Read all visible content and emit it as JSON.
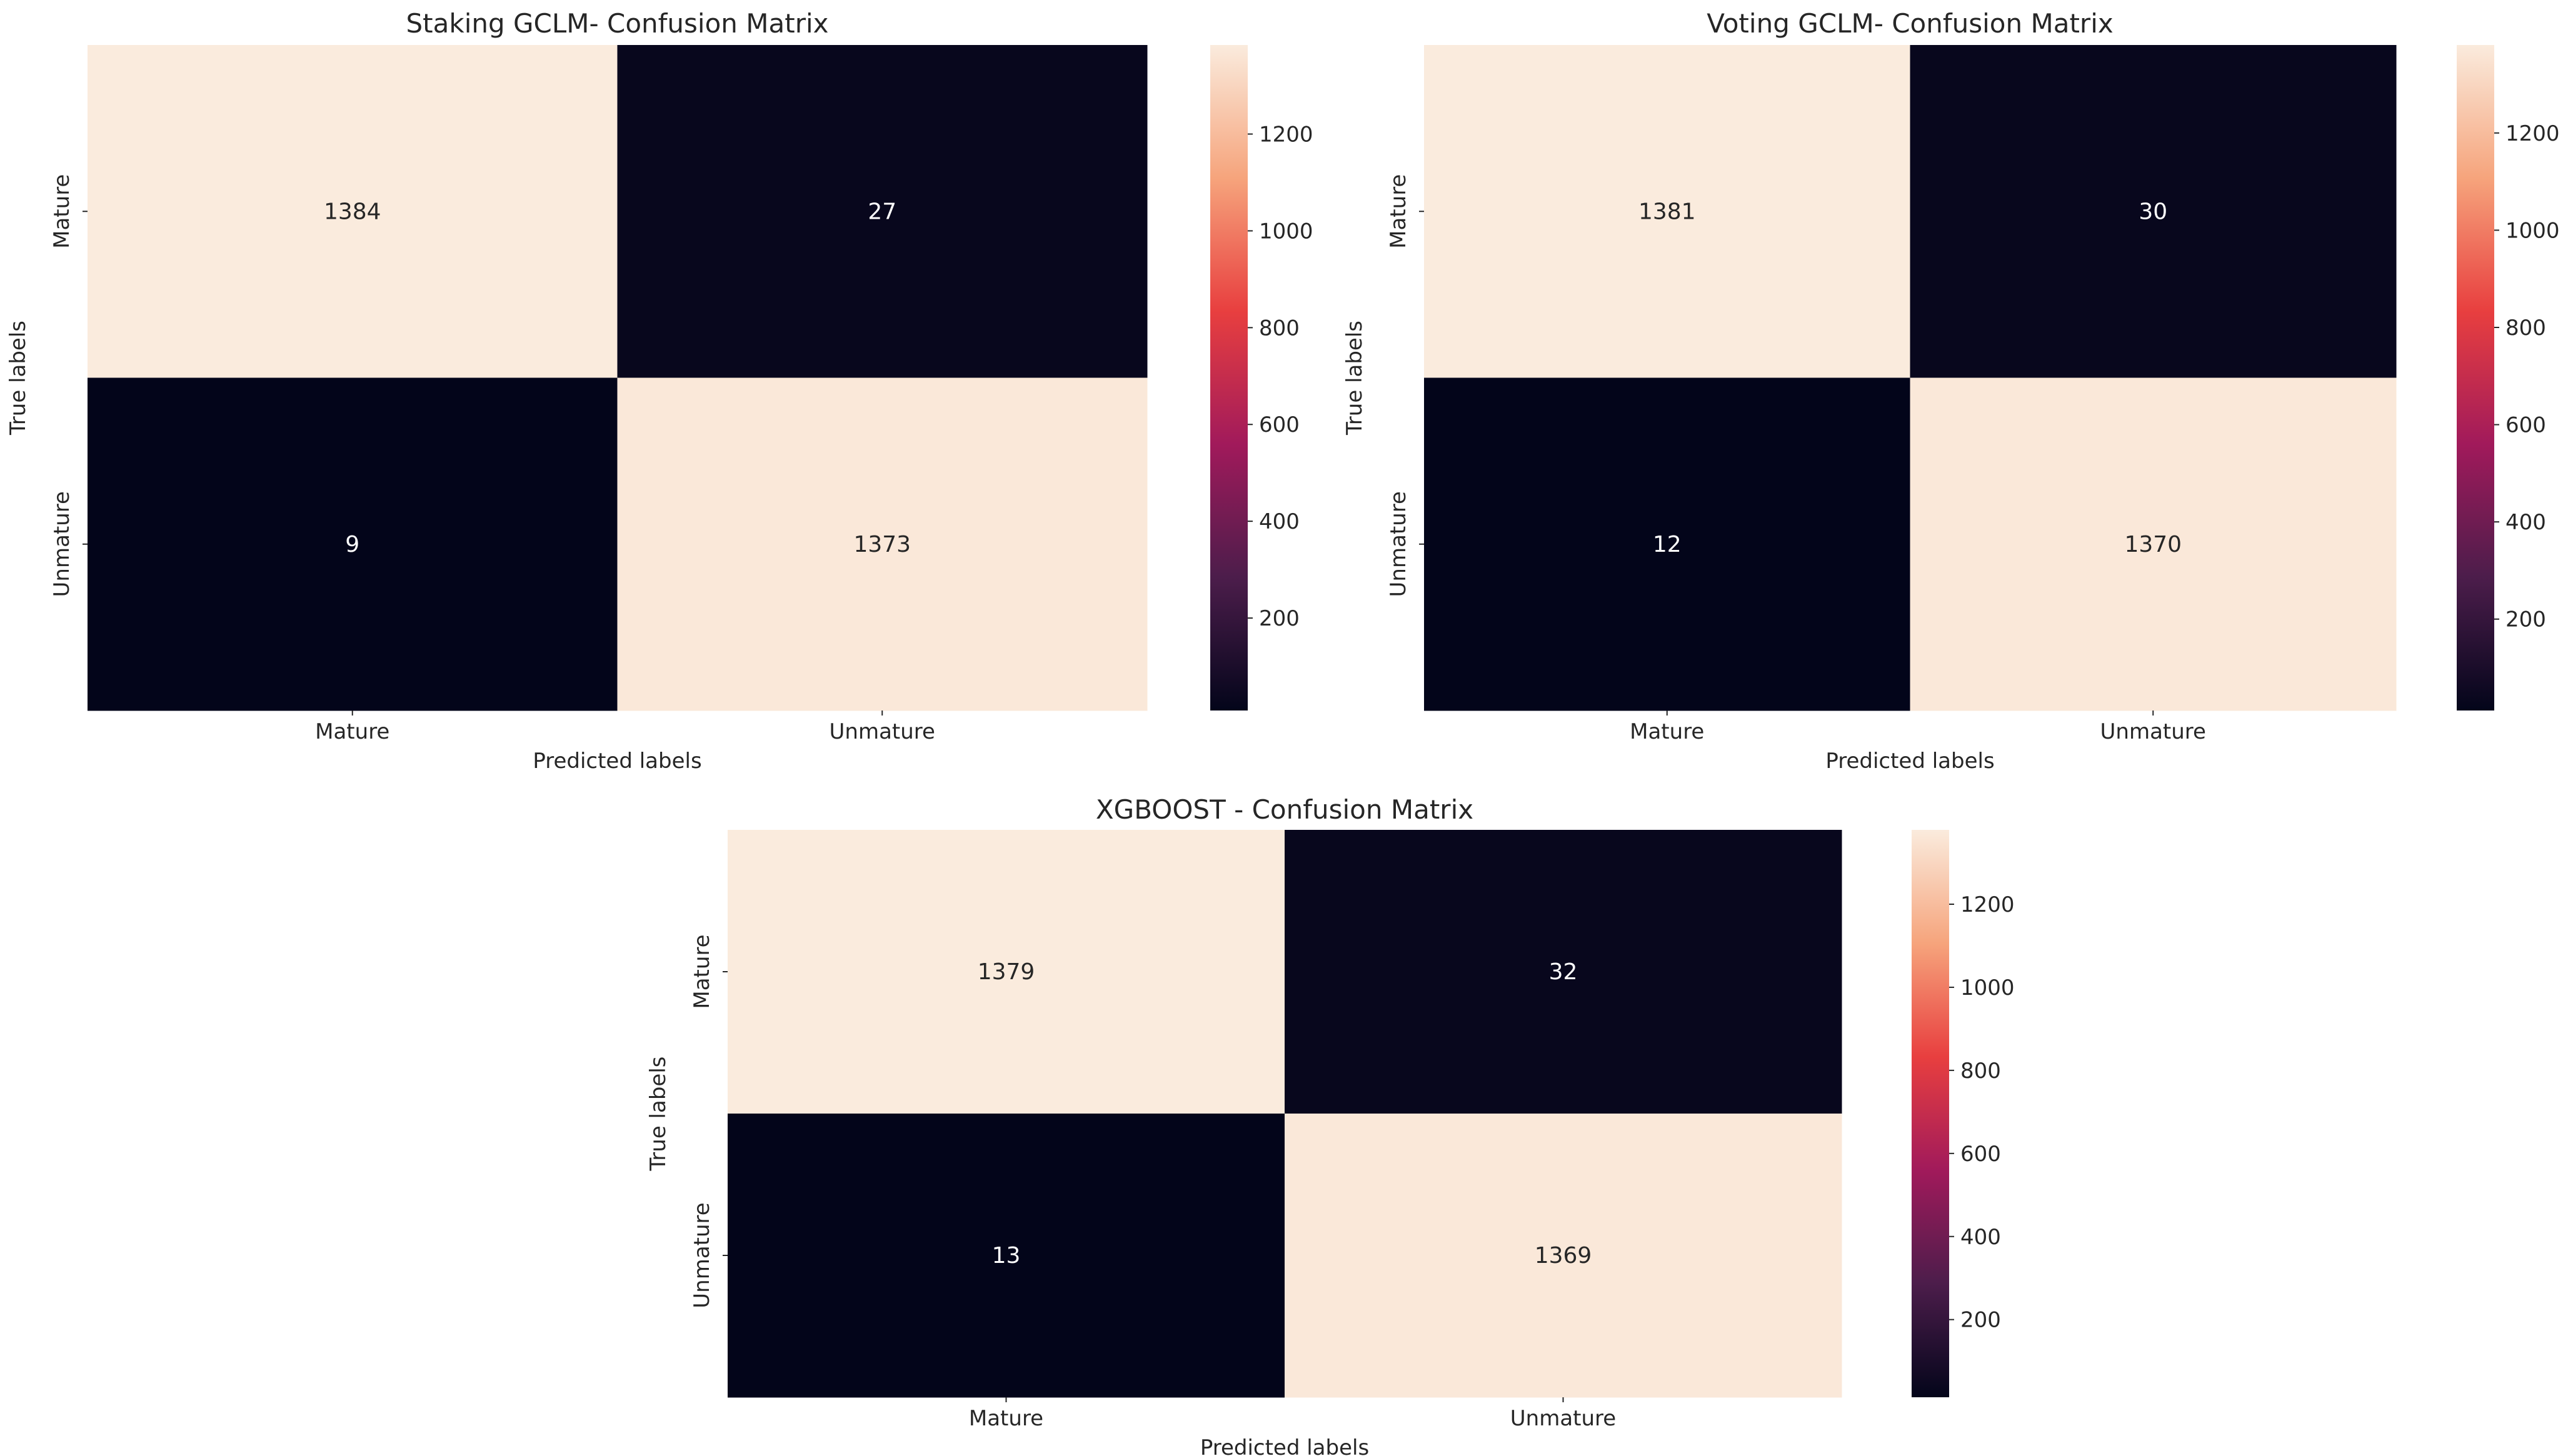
{
  "chart_data": [
    {
      "type": "heatmap",
      "title": "Staking GCLM- Confusion Matrix",
      "xlabel": "Predicted labels",
      "ylabel": "True labels",
      "x_categories": [
        "Mature",
        "Unmature"
      ],
      "y_categories": [
        "Mature",
        "Unmature"
      ],
      "values": [
        [
          1384,
          27
        ],
        [
          9,
          1373
        ]
      ],
      "colorbar": {
        "range": [
          9,
          1384
        ],
        "ticks": [
          200,
          400,
          600,
          800,
          1000,
          1200
        ]
      }
    },
    {
      "type": "heatmap",
      "title": "Voting GCLM- Confusion Matrix",
      "xlabel": "Predicted labels",
      "ylabel": "True labels",
      "x_categories": [
        "Mature",
        "Unmature"
      ],
      "y_categories": [
        "Mature",
        "Unmature"
      ],
      "values": [
        [
          1381,
          30
        ],
        [
          12,
          1370
        ]
      ],
      "colorbar": {
        "range": [
          12,
          1381
        ],
        "ticks": [
          200,
          400,
          600,
          800,
          1000,
          1200
        ]
      }
    },
    {
      "type": "heatmap",
      "title": "XGBOOST  - Confusion Matrix",
      "xlabel": "Predicted labels",
      "ylabel": "True labels",
      "x_categories": [
        "Mature",
        "Unmature"
      ],
      "y_categories": [
        "Mature",
        "Unmature"
      ],
      "values": [
        [
          1379,
          32
        ],
        [
          13,
          1369
        ]
      ],
      "colorbar": {
        "range": [
          13,
          1379
        ],
        "ticks": [
          200,
          400,
          600,
          800,
          1000,
          1200
        ]
      }
    }
  ]
}
